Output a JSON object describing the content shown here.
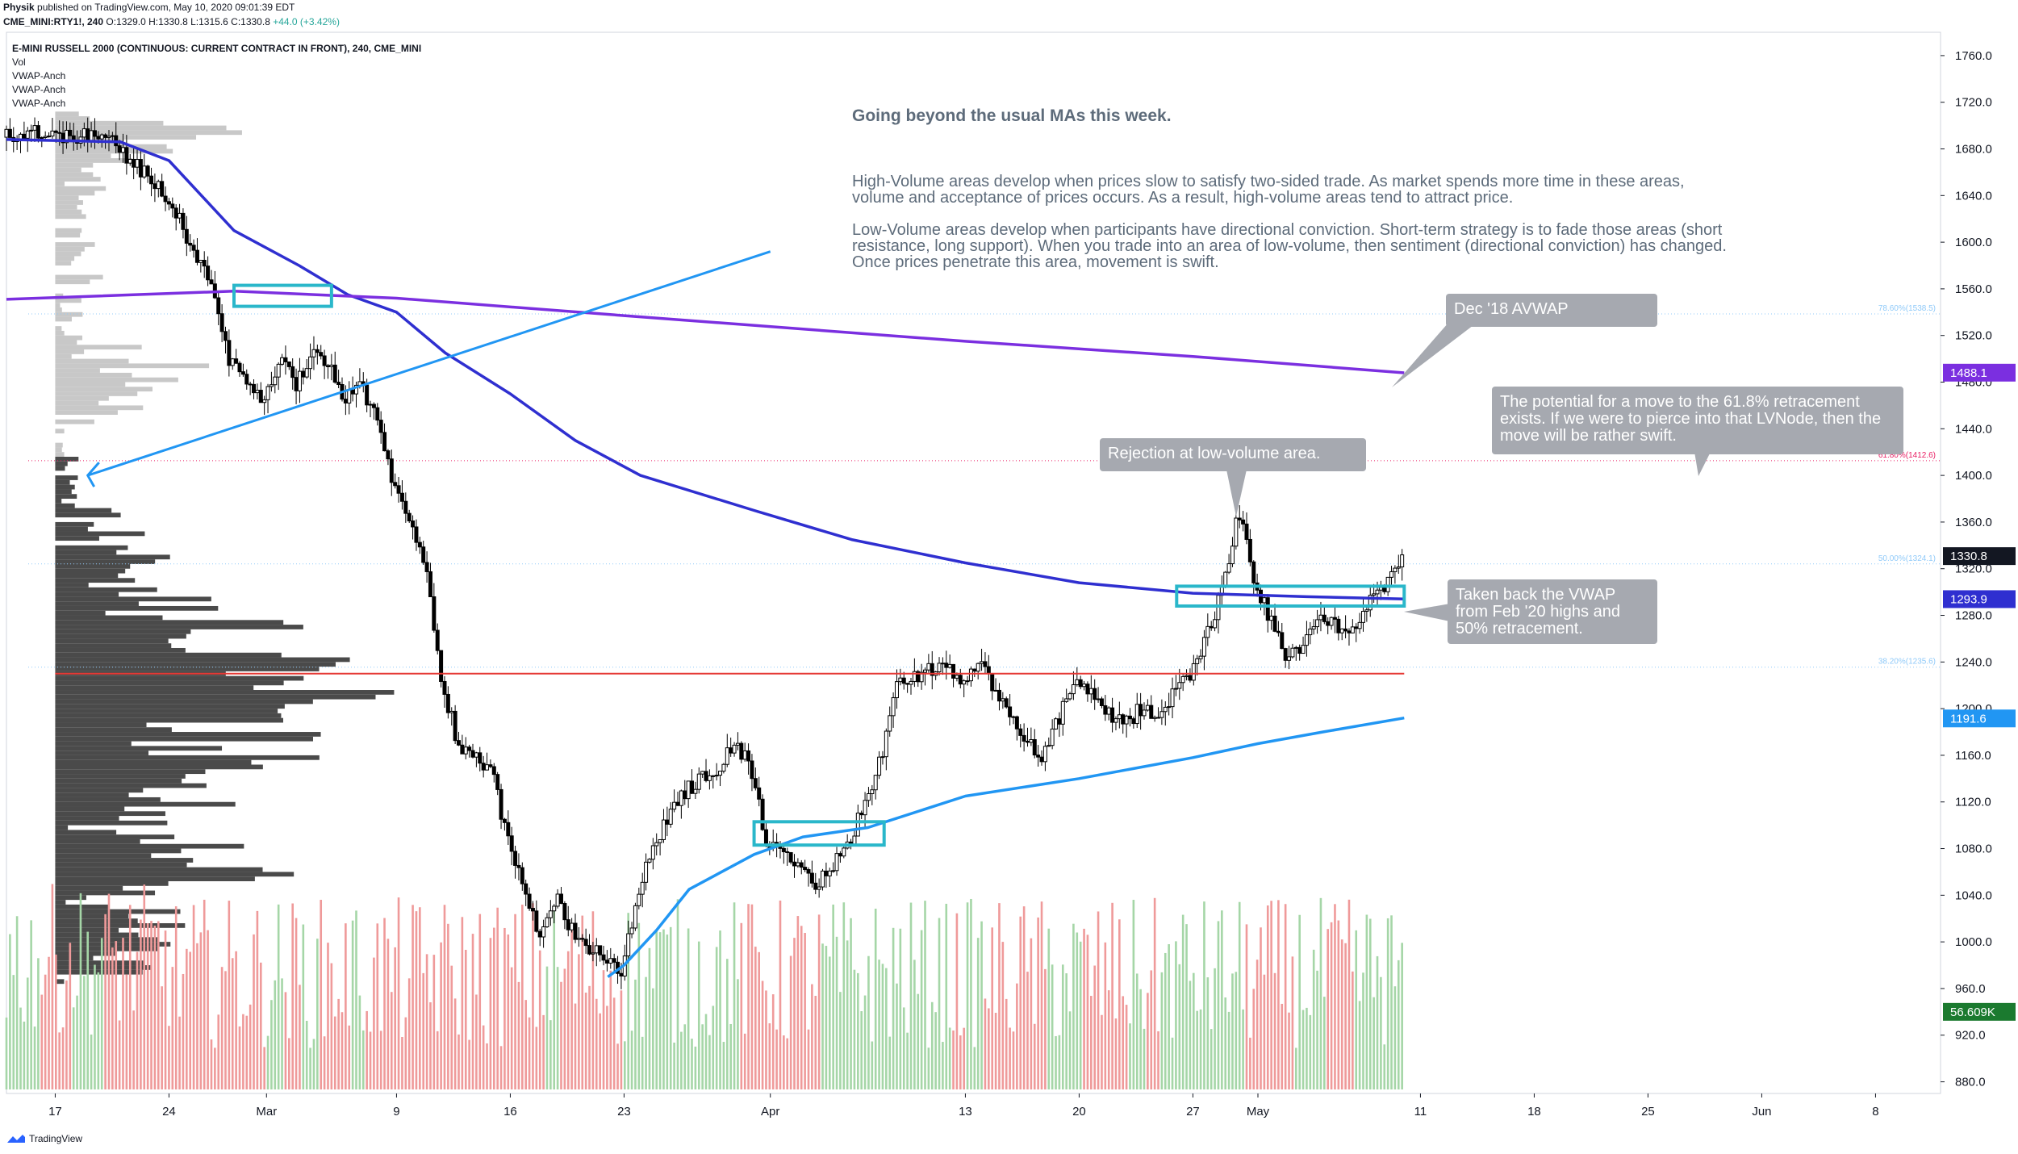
{
  "header": {
    "publisher": "Physik",
    "published": "published on TradingView.com, May 10, 2020 09:01:39 EDT",
    "symbol": "CME_MINI:RTY1!, 240",
    "ohlc": "O:1329.0 H:1330.8 L:1315.6 C:1330.8"
  },
  "quote_change": "+44.0 (+3.42%)",
  "legend": {
    "title": "E-MINI RUSSELL 2000 (CONTINUOUS: CURRENT CONTRACT IN FRONT), 240, CME_MINI",
    "items": [
      "Vol",
      "VWAP-Anch",
      "VWAP-Anch",
      "VWAP-Anch"
    ]
  },
  "annotations": {
    "title": "Going beyond the usual MAs this week.",
    "para1": "High-Volume areas develop when prices slow to satisfy two-sided trade. As market spends more time in these areas, volume and acceptance of prices occurs. As a result, high-volume areas tend to attract price.",
    "para2": "Low-Volume areas develop when participants have directional conviction. Short-term strategy is to fade those areas (short resistance, long support). When you trade into an area of low-volume, then sentiment (directional conviction) has changed. Once prices penetrate this area, movement is swift.",
    "callout_avwap": "Dec '18 AVWAP",
    "callout_potential": "The potential for a move to the 61.8% retracement exists. If we were to pierce into that LVNode, then the move will be rather swift.",
    "callout_rejection": "Rejection at low-volume area.",
    "callout_vwap": "Taken back the VWAP from Feb '20 highs and 50% retracement."
  },
  "footer": {
    "brand": "TradingView"
  },
  "colors": {
    "up": "#26a69a",
    "down": "#000000",
    "vwap_feb": "#2f2fd0",
    "vwap_dec18": "#7b2fe0",
    "vwap_mar": "#2196f3",
    "box": "#2ab7ca",
    "support": "#e53935",
    "fib618": "#e91e63",
    "fib": "#90caf9"
  },
  "chart_data": {
    "type": "candlestick",
    "title": "E-MINI RUSSELL 2000 (CONTINUOUS: CURRENT CONTRACT IN FRONT), 240, CME_MINI",
    "y_range": [
      870,
      1780
    ],
    "y_ticks": [
      880,
      920,
      960,
      1000,
      1040,
      1080,
      1120,
      1160,
      1200,
      1240,
      1280,
      1320,
      1360,
      1400,
      1440,
      1480,
      1520,
      1560,
      1600,
      1640,
      1680,
      1720,
      1760
    ],
    "y_tick_labels": [
      "880.0",
      "920.0",
      "960.0",
      "1000.0",
      "1040.0",
      "1080.0",
      "1120.0",
      "1160.0",
      "1200.0",
      "1240.0",
      "1280.0",
      "1320.0",
      "1360.0",
      "1400.0",
      "1440.0",
      "1480.0",
      "1520.0",
      "1560.0",
      "1600.0",
      "1640.0",
      "1680.0",
      "1720.0",
      "1760.0"
    ],
    "x_start": "2020-02-14",
    "x_end": "2020-06-12",
    "x_ticks": [
      {
        "date": "2020-02-17",
        "label": "17"
      },
      {
        "date": "2020-02-24",
        "label": "24"
      },
      {
        "date": "2020-03-01",
        "label": "Mar"
      },
      {
        "date": "2020-03-09",
        "label": "9"
      },
      {
        "date": "2020-03-16",
        "label": "16"
      },
      {
        "date": "2020-03-23",
        "label": "23"
      },
      {
        "date": "2020-04-01",
        "label": "Apr"
      },
      {
        "date": "2020-04-13",
        "label": "13"
      },
      {
        "date": "2020-04-20",
        "label": "20"
      },
      {
        "date": "2020-04-27",
        "label": "27"
      },
      {
        "date": "2020-05-01",
        "label": "May"
      },
      {
        "date": "2020-05-11",
        "label": "11"
      },
      {
        "date": "2020-05-18",
        "label": "18"
      },
      {
        "date": "2020-05-25",
        "label": "25"
      },
      {
        "date": "2020-06-01",
        "label": "Jun"
      },
      {
        "date": "2020-06-08",
        "label": "8"
      }
    ],
    "price_path": [
      [
        "2020-02-14",
        1690
      ],
      [
        "2020-02-16",
        1696
      ],
      [
        "2020-02-18",
        1690
      ],
      [
        "2020-02-20",
        1695
      ],
      [
        "2020-02-21",
        1683
      ],
      [
        "2020-02-24",
        1640
      ],
      [
        "2020-02-25",
        1615
      ],
      [
        "2020-02-26",
        1585
      ],
      [
        "2020-02-27",
        1555
      ],
      [
        "2020-02-28",
        1495
      ],
      [
        "2020-03-01",
        1465
      ],
      [
        "2020-03-02",
        1500
      ],
      [
        "2020-03-03",
        1478
      ],
      [
        "2020-03-04",
        1505
      ],
      [
        "2020-03-05",
        1500
      ],
      [
        "2020-03-06",
        1465
      ],
      [
        "2020-03-07",
        1480
      ],
      [
        "2020-03-08",
        1445
      ],
      [
        "2020-03-09",
        1395
      ],
      [
        "2020-03-10",
        1360
      ],
      [
        "2020-03-11",
        1325
      ],
      [
        "2020-03-12",
        1225
      ],
      [
        "2020-03-13",
        1170
      ],
      [
        "2020-03-15",
        1150
      ],
      [
        "2020-03-16",
        1090
      ],
      [
        "2020-03-17",
        1050
      ],
      [
        "2020-03-18",
        1000
      ],
      [
        "2020-03-19",
        1040
      ],
      [
        "2020-03-20",
        1010
      ],
      [
        "2020-03-22",
        985
      ],
      [
        "2020-03-23",
        970
      ],
      [
        "2020-03-24",
        1040
      ],
      [
        "2020-03-25",
        1080
      ],
      [
        "2020-03-26",
        1110
      ],
      [
        "2020-03-27",
        1130
      ],
      [
        "2020-03-29",
        1150
      ],
      [
        "2020-03-30",
        1170
      ],
      [
        "2020-03-31",
        1150
      ],
      [
        "2020-04-01",
        1085
      ],
      [
        "2020-04-02",
        1075
      ],
      [
        "2020-04-03",
        1060
      ],
      [
        "2020-04-04",
        1050
      ],
      [
        "2020-04-06",
        1080
      ],
      [
        "2020-04-07",
        1120
      ],
      [
        "2020-04-08",
        1155
      ],
      [
        "2020-04-09",
        1220
      ],
      [
        "2020-04-12",
        1240
      ],
      [
        "2020-04-13",
        1215
      ],
      [
        "2020-04-14",
        1240
      ],
      [
        "2020-04-15",
        1215
      ],
      [
        "2020-04-16",
        1195
      ],
      [
        "2020-04-17",
        1170
      ],
      [
        "2020-04-18",
        1160
      ],
      [
        "2020-04-20",
        1225
      ],
      [
        "2020-04-21",
        1210
      ],
      [
        "2020-04-22",
        1195
      ],
      [
        "2020-04-23",
        1185
      ],
      [
        "2020-04-24",
        1200
      ],
      [
        "2020-04-25",
        1195
      ],
      [
        "2020-04-27",
        1230
      ],
      [
        "2020-04-28",
        1260
      ],
      [
        "2020-04-29",
        1300
      ],
      [
        "2020-04-30",
        1370
      ],
      [
        "2020-05-01",
        1310
      ],
      [
        "2020-05-02",
        1275
      ],
      [
        "2020-05-03",
        1245
      ],
      [
        "2020-05-04",
        1250
      ],
      [
        "2020-05-05",
        1285
      ],
      [
        "2020-05-06",
        1270
      ],
      [
        "2020-05-07",
        1265
      ],
      [
        "2020-05-08",
        1290
      ],
      [
        "2020-05-09",
        1305
      ],
      [
        "2020-05-10",
        1330
      ]
    ],
    "volume_max": 56609,
    "volume_last_label": "56.609K",
    "price_scale_labels": [
      {
        "label": "1488.1",
        "value": 1488.1,
        "color": "#7b2fe0"
      },
      {
        "label": "1330.8",
        "value": 1330.8,
        "color": "#131722"
      },
      {
        "label": "1293.9",
        "value": 1293.9,
        "color": "#2f2fd0"
      },
      {
        "label": "1191.6",
        "value": 1191.6,
        "color": "#2196f3"
      },
      {
        "label": "56.609K",
        "value": 940,
        "color": "#1b7a2f"
      }
    ],
    "fib_levels": [
      {
        "label": "78.60%(1538.5)",
        "value": 1538.5
      },
      {
        "label": "61.80%(1412.6)",
        "value": 1412.6
      },
      {
        "label": "50.00%(1324.1)",
        "value": 1324.1
      },
      {
        "label": "38.20%(1235.6)",
        "value": 1235.6
      }
    ],
    "vwap_series": [
      {
        "points": [
          [
            "2020-02-14",
            1688
          ],
          [
            "2020-02-21",
            1686
          ],
          [
            "2020-02-24",
            1670
          ],
          [
            "2020-02-28",
            1610
          ],
          [
            "2020-03-03",
            1580
          ],
          [
            "2020-03-06",
            1555
          ],
          [
            "2020-03-09",
            1540
          ],
          [
            "2020-03-12",
            1505
          ],
          [
            "2020-03-16",
            1470
          ],
          [
            "2020-03-20",
            1430
          ],
          [
            "2020-03-24",
            1400
          ],
          [
            "2020-03-31",
            1370
          ],
          [
            "2020-04-06",
            1345
          ],
          [
            "2020-04-13",
            1325
          ],
          [
            "2020-04-20",
            1308
          ],
          [
            "2020-04-27",
            1299
          ],
          [
            "2020-05-04",
            1296
          ],
          [
            "2020-05-10",
            1294
          ]
        ]
      },
      {
        "points": [
          [
            "2020-02-14",
            1551
          ],
          [
            "2020-02-28",
            1558
          ],
          [
            "2020-03-09",
            1552
          ],
          [
            "2020-03-23",
            1537
          ],
          [
            "2020-04-13",
            1515
          ],
          [
            "2020-04-27",
            1502
          ],
          [
            "2020-05-10",
            1488
          ]
        ]
      },
      {
        "points": [
          [
            "2020-03-22",
            970
          ],
          [
            "2020-03-23",
            980
          ],
          [
            "2020-03-25",
            1010
          ],
          [
            "2020-03-27",
            1045
          ],
          [
            "2020-03-31",
            1075
          ],
          [
            "2020-04-03",
            1090
          ],
          [
            "2020-04-07",
            1098
          ],
          [
            "2020-04-13",
            1125
          ],
          [
            "2020-04-20",
            1140
          ],
          [
            "2020-04-27",
            1158
          ],
          [
            "2020-05-01",
            1170
          ],
          [
            "2020-05-05",
            1180
          ],
          [
            "2020-05-10",
            1192
          ]
        ]
      }
    ],
    "support_line": {
      "value": 1230,
      "from": "2020-02-17",
      "to": "2020-05-10"
    },
    "trend_line": {
      "from": [
        "2020-02-19",
        1400
      ],
      "to": [
        "2020-04-01",
        1592
      ]
    },
    "boxes": [
      {
        "from": "2020-02-28",
        "to": "2020-03-05",
        "low": 1545,
        "high": 1563
      },
      {
        "from": "2020-03-31",
        "to": "2020-04-08",
        "low": 1083,
        "high": 1103
      },
      {
        "from": "2020-04-26",
        "to": "2020-05-10",
        "low": 1288,
        "high": 1305
      }
    ]
  }
}
